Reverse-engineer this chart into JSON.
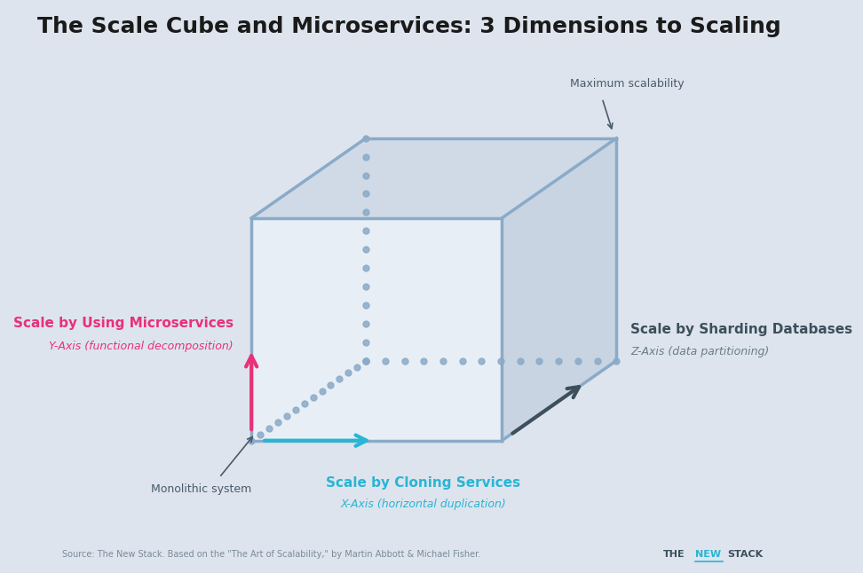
{
  "title": "The Scale Cube and Microservices: 3 Dimensions to Scaling",
  "title_fontsize": 18,
  "bg_color": "#dde4ed",
  "cube_color": "#8aaac8",
  "cube_linewidth": 2.5,
  "dot_color": "#8aaac8",
  "front_face_color": "#e8eef5",
  "top_face_color": "#d0dae6",
  "right_face_color": "#c8d4e2",
  "y_axis_label1": "Scale by Using Microservices",
  "y_axis_label2": "Y-Axis (functional decomposition)",
  "y_axis_color1": "#e8317a",
  "y_axis_color2": "#e8317a",
  "x_axis_label1": "Scale by Cloning Services",
  "x_axis_label2": "X-Axis (horizontal duplication)",
  "x_axis_color1": "#29b5d4",
  "x_axis_color2": "#29b5d4",
  "z_axis_label1": "Scale by Sharding Databases",
  "z_axis_label2": "Z-Axis (data partitioning)",
  "z_axis_color1": "#3d4f5c",
  "z_axis_color2": "#6b7d88",
  "max_scalability_text": "Maximum scalability",
  "monolithic_text": "Monolithic system",
  "source_text": "Source: The New Stack. Based on the \"The Art of Scalability,\" by Martin Abbott & Michael Fisher.",
  "thenewstack_color_the": "#3d4f5c",
  "thenewstack_color_new": "#29b5d4",
  "thenewstack_color_stack": "#3d4f5c",
  "annotation_color": "#4a5a6a"
}
